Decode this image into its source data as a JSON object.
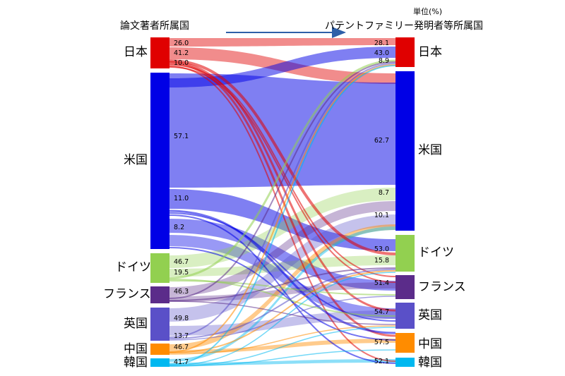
{
  "header": {
    "left_title": "論文著者所属国",
    "right_title": "パテントファミリー発明者等所属国",
    "unit": "単位(%)"
  },
  "countries": {
    "japan": "日本",
    "us": "米国",
    "germany": "ドイツ",
    "france": "フランス",
    "uk": "英国",
    "china": "中国",
    "korea": "韓国"
  },
  "colors": {
    "japan": "#e00000",
    "us": "#0000e6",
    "germany": "#92d050",
    "france": "#5b2c8a",
    "uk": "#5a50c8",
    "china": "#ff8c00",
    "korea": "#00b8f0"
  },
  "left_values": {
    "japan": [
      "26.0",
      "41.2",
      "10.0"
    ],
    "us": [
      "57.1",
      "11.0",
      "8.2"
    ],
    "germany": [
      "46.7",
      "19.5"
    ],
    "france": [
      "46.3"
    ],
    "uk": [
      "49.8",
      "13.7"
    ],
    "china": [
      "46.7"
    ],
    "korea": [
      "41.7"
    ]
  },
  "right_values": {
    "japan": [
      "28.1",
      "43.0",
      "8.9"
    ],
    "us": [
      "62.7",
      "8.7",
      "10.1"
    ],
    "germany": [
      "53.0",
      "15.8"
    ],
    "france": [
      "51.4"
    ],
    "uk": [
      "54.7"
    ],
    "china": [
      "57.5"
    ],
    "korea": [
      "52.1"
    ]
  }
}
